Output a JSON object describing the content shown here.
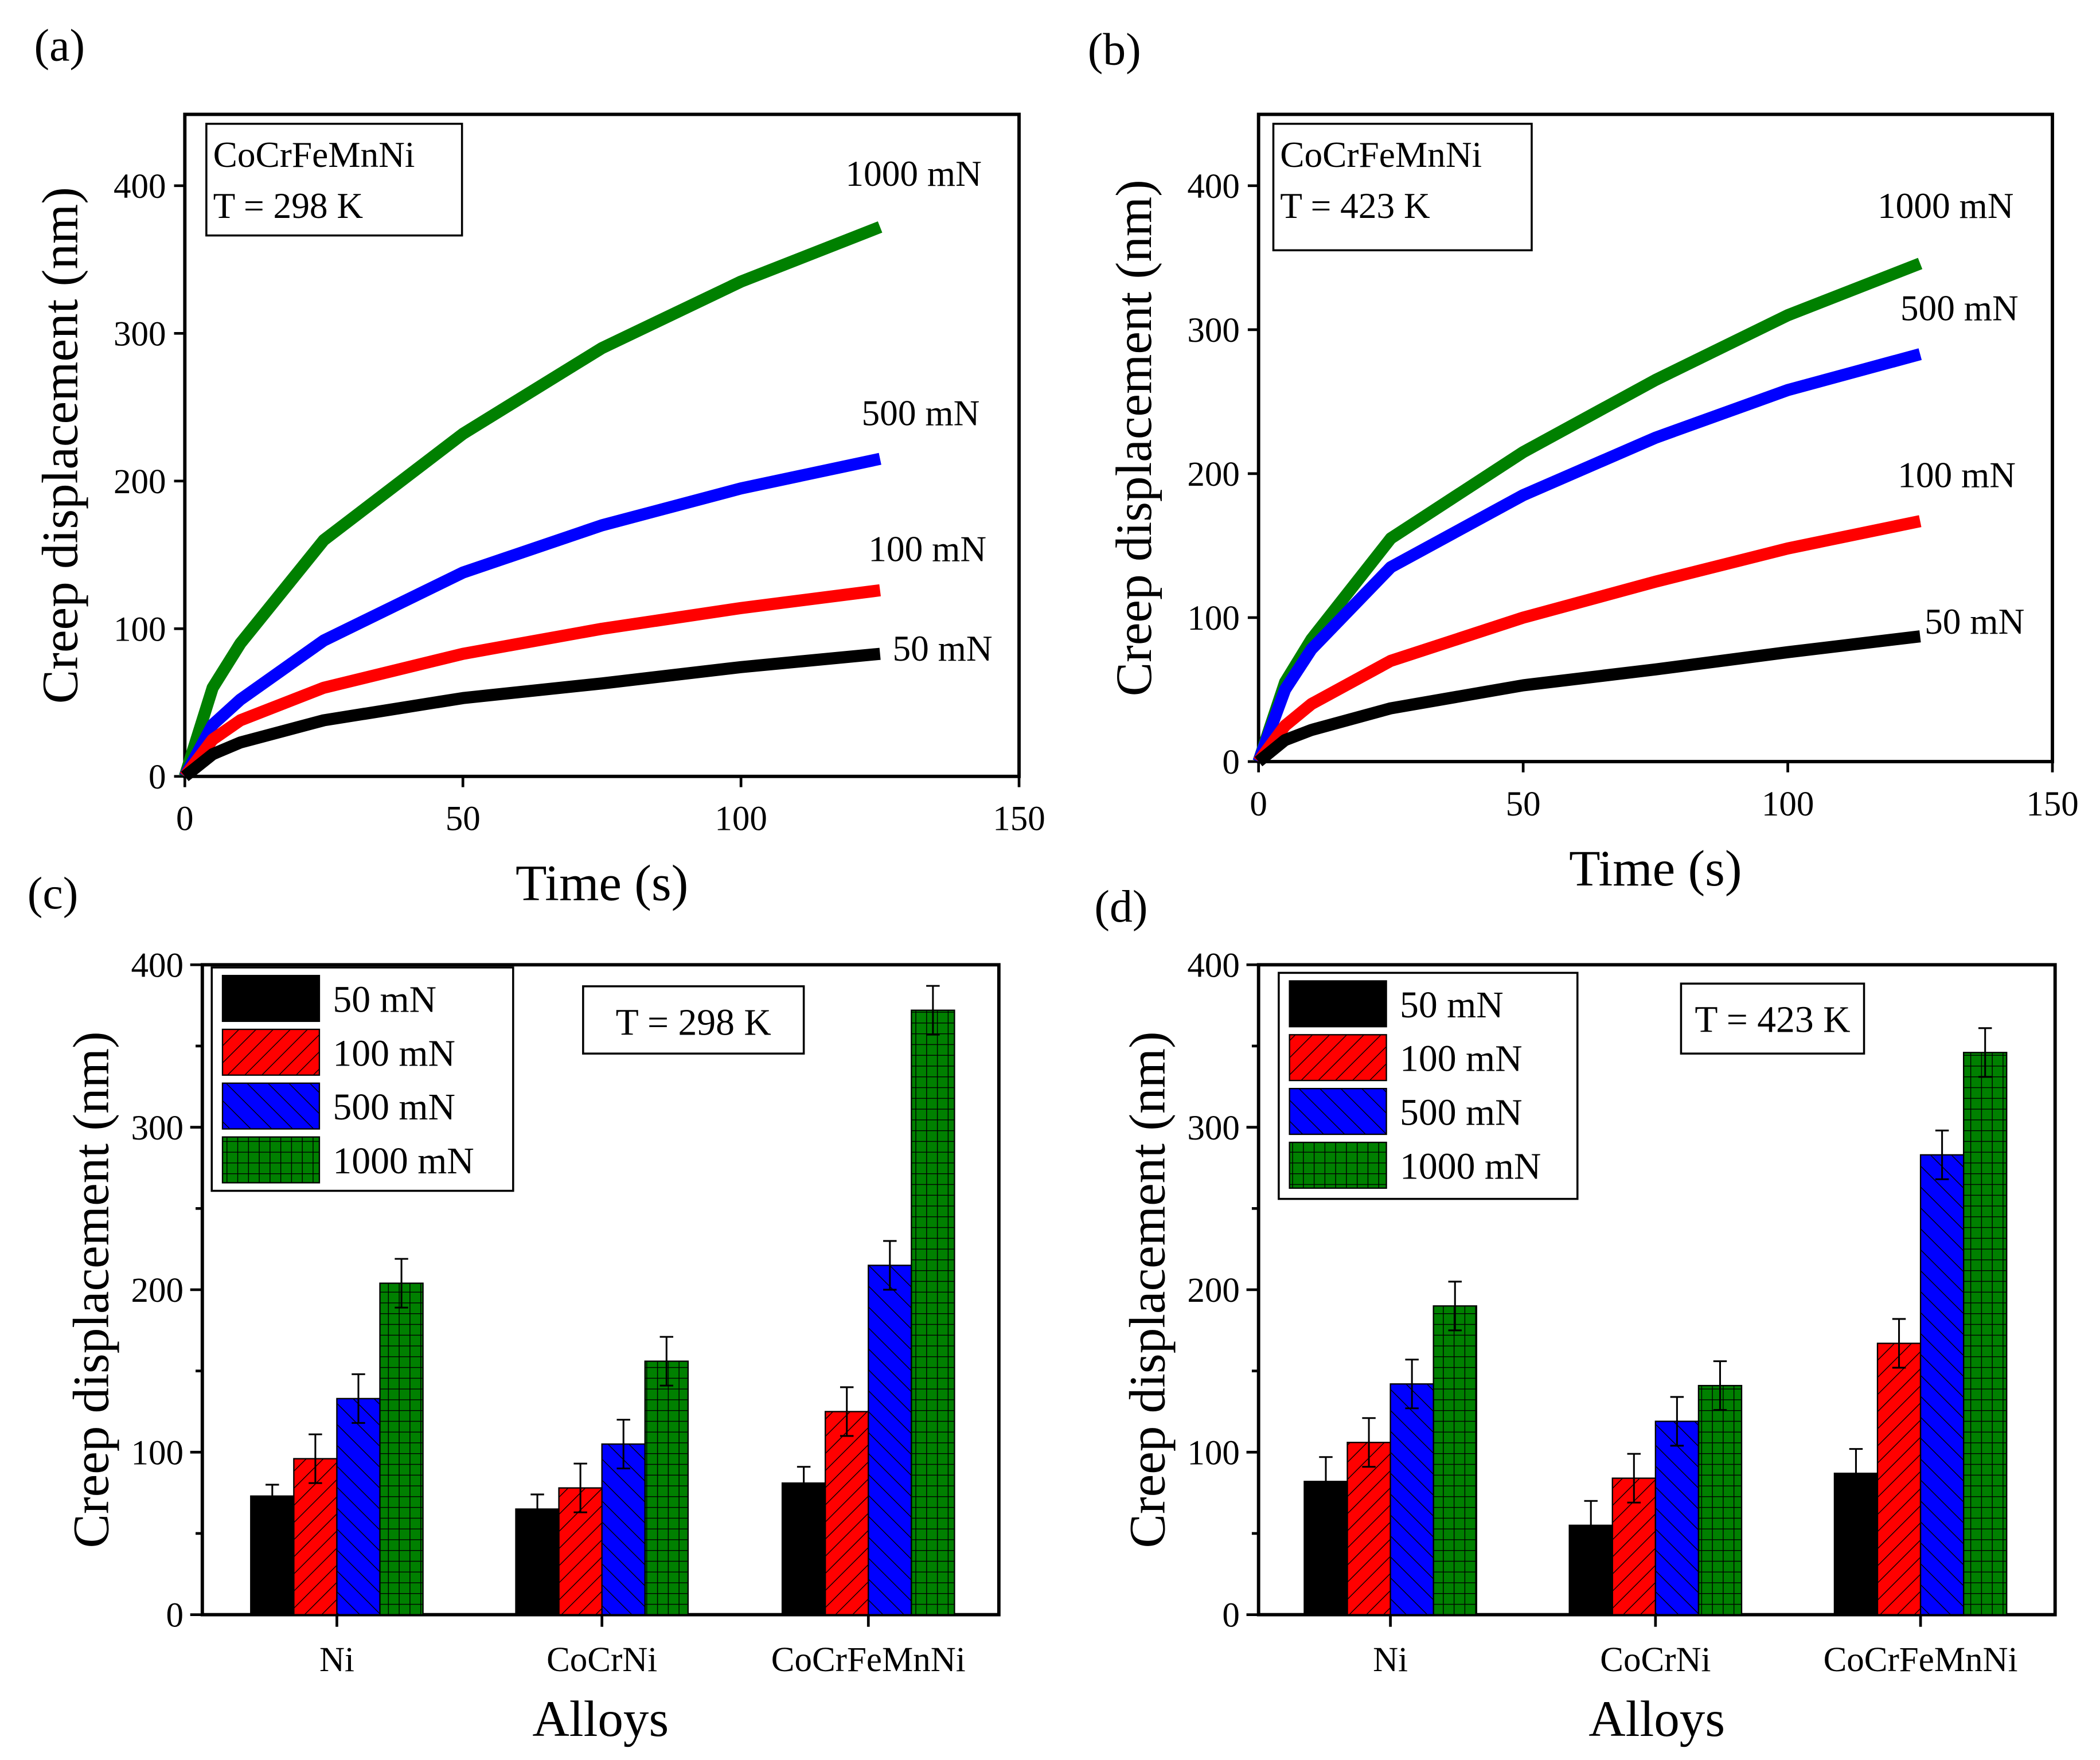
{
  "chart_data": [
    {
      "panel": "(a)",
      "type": "line",
      "title": "CoCrFeMnNi",
      "subtitle": "T = 298 K",
      "xlabel": "Time (s)",
      "ylabel": "Creep displacement (nm)",
      "xlim": [
        0,
        150
      ],
      "ylim": [
        0,
        450
      ],
      "xticks": [
        0,
        50,
        100,
        150
      ],
      "yticks": [
        0,
        100,
        200,
        300,
        400
      ],
      "x": [
        0,
        5,
        10,
        25,
        50,
        75,
        100,
        125
      ],
      "series": [
        {
          "name": "1000 mN",
          "color": "#008000",
          "values": [
            0,
            60,
            90,
            160,
            232,
            290,
            335,
            372
          ]
        },
        {
          "name": "500 mN",
          "color": "#0000ff",
          "values": [
            0,
            35,
            52,
            92,
            138,
            170,
            195,
            215
          ]
        },
        {
          "name": "100 mN",
          "color": "#ff0000",
          "values": [
            0,
            25,
            38,
            60,
            83,
            100,
            114,
            126
          ]
        },
        {
          "name": "50 mN",
          "color": "#000000",
          "values": [
            0,
            15,
            23,
            38,
            53,
            63,
            74,
            83
          ]
        }
      ]
    },
    {
      "panel": "(b)",
      "type": "line",
      "title": "CoCrFeMnNi",
      "subtitle": "T = 423 K",
      "xlabel": "Time (s)",
      "ylabel": "Creep displacement (nm)",
      "xlim": [
        0,
        150
      ],
      "ylim": [
        0,
        450
      ],
      "xticks": [
        0,
        50,
        100,
        150
      ],
      "yticks": [
        0,
        100,
        200,
        300,
        400
      ],
      "x": [
        0,
        5,
        10,
        25,
        50,
        75,
        100,
        125
      ],
      "series": [
        {
          "name": "1000 mN",
          "color": "#008000",
          "values": [
            0,
            55,
            85,
            155,
            215,
            265,
            310,
            346
          ]
        },
        {
          "name": "500 mN",
          "color": "#0000ff",
          "values": [
            0,
            50,
            78,
            135,
            185,
            225,
            258,
            283
          ]
        },
        {
          "name": "100 mN",
          "color": "#ff0000",
          "values": [
            0,
            25,
            40,
            70,
            100,
            125,
            148,
            167
          ]
        },
        {
          "name": "50 mN",
          "color": "#000000",
          "values": [
            0,
            15,
            22,
            37,
            53,
            64,
            76,
            87
          ]
        }
      ]
    },
    {
      "panel": "(c)",
      "type": "bar",
      "annotation": "T = 298 K",
      "xlabel": "Alloys",
      "ylabel": "Creep displacement (nm)",
      "ylim": [
        0,
        400
      ],
      "yticks": [
        0,
        100,
        200,
        300,
        400
      ],
      "categories": [
        "Ni",
        "CoCrNi",
        "CoCrFeMnNi"
      ],
      "series": [
        {
          "name": "50 mN",
          "color": "#000000",
          "values": [
            73,
            65,
            81
          ],
          "errors": [
            7,
            9,
            10
          ]
        },
        {
          "name": "100 mN",
          "color": "#ff0000",
          "values": [
            96,
            78,
            125
          ],
          "errors": [
            15,
            15,
            15
          ]
        },
        {
          "name": "500 mN",
          "color": "#0000ff",
          "values": [
            133,
            105,
            215
          ],
          "errors": [
            15,
            15,
            15
          ]
        },
        {
          "name": "1000 mN",
          "color": "#008000",
          "values": [
            204,
            156,
            372
          ],
          "errors": [
            15,
            15,
            15
          ]
        }
      ]
    },
    {
      "panel": "(d)",
      "type": "bar",
      "annotation": "T = 423 K",
      "xlabel": "Alloys",
      "ylabel": "Creep displacement (nm)",
      "ylim": [
        0,
        400
      ],
      "yticks": [
        0,
        100,
        200,
        300,
        400
      ],
      "categories": [
        "Ni",
        "CoCrNi",
        "CoCrFeMnNi"
      ],
      "series": [
        {
          "name": "50 mN",
          "color": "#000000",
          "values": [
            82,
            55,
            87
          ],
          "errors": [
            15,
            15,
            15
          ]
        },
        {
          "name": "100 mN",
          "color": "#ff0000",
          "values": [
            106,
            84,
            167
          ],
          "errors": [
            15,
            15,
            15
          ]
        },
        {
          "name": "500 mN",
          "color": "#0000ff",
          "values": [
            142,
            119,
            283
          ],
          "errors": [
            15,
            15,
            15
          ]
        },
        {
          "name": "1000 mN",
          "color": "#008000",
          "values": [
            190,
            141,
            346
          ],
          "errors": [
            15,
            15,
            15
          ]
        }
      ]
    }
  ]
}
